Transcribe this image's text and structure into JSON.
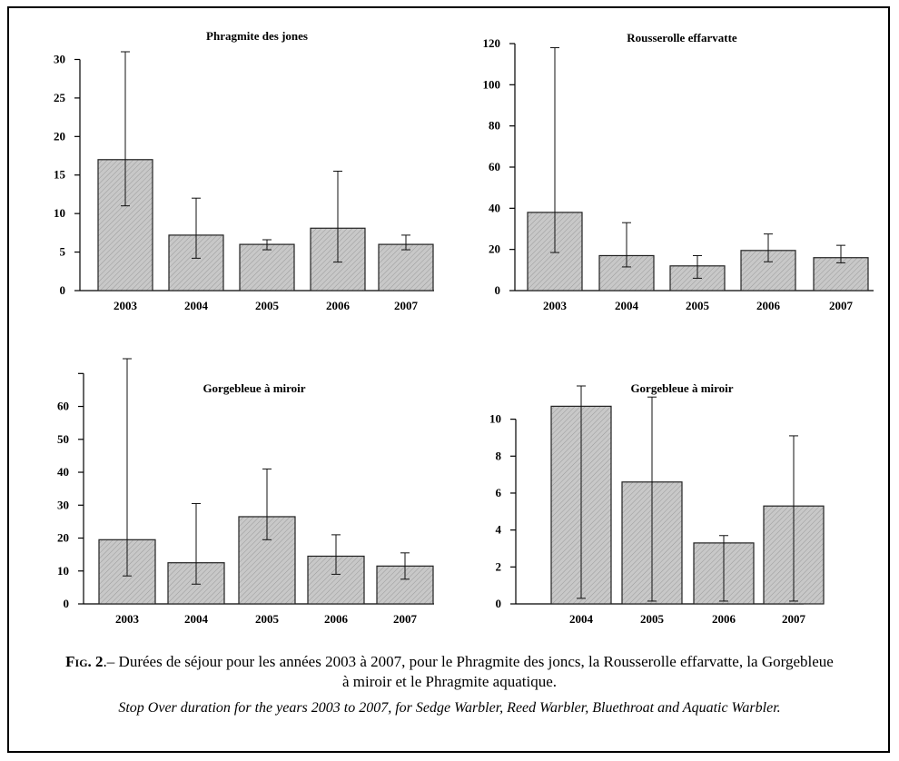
{
  "caption": {
    "fig_label": "Fig.",
    "fig_number": "2",
    "french_text": ".– Durées de séjour pour les années 2003 à 2007, pour le Phragmite des joncs, la Rousserolle effarvatte, la Gorgebleue à miroir et le Phragmite aquatique.",
    "english_text": "Stop Over duration for the years 2003 to 2007, for Sedge Warbler,  Reed Warbler, Bluethroat and Aquatic Warbler."
  },
  "colors": {
    "bar_fill": "#c8c8c8",
    "bar_stroke": "#222222",
    "axis": "#000000"
  },
  "chart_data": [
    {
      "type": "bar",
      "title": "Phragmite des jones",
      "categories": [
        "2003",
        "2004",
        "2005",
        "2006",
        "2007"
      ],
      "values": [
        17,
        7.2,
        6,
        8.1,
        6
      ],
      "error_low": [
        11,
        4.2,
        5.3,
        3.7,
        5.3
      ],
      "error_high": [
        31,
        12,
        6.6,
        15.5,
        7.2
      ],
      "yticks": [
        0,
        5,
        10,
        15,
        20,
        25,
        30
      ],
      "ytick_labels": [
        "0",
        "5",
        "10",
        "15",
        "20",
        "25",
        "30"
      ],
      "ylim": [
        0,
        31
      ],
      "xlabel": "",
      "ylabel": ""
    },
    {
      "type": "bar",
      "title": "Rousserolle effarvatte",
      "categories": [
        "2003",
        "2004",
        "2005",
        "2006",
        "2007"
      ],
      "values": [
        38,
        17,
        12,
        19.5,
        16
      ],
      "error_low": [
        18.5,
        11.5,
        6,
        14,
        13.5
      ],
      "error_high": [
        118,
        33,
        17,
        27.5,
        22
      ],
      "yticks": [
        0,
        20,
        40,
        60,
        80,
        100,
        120
      ],
      "ytick_labels": [
        "0",
        "20",
        "40",
        "60",
        "80",
        "100",
        "120"
      ],
      "ylim": [
        0,
        120
      ],
      "xlabel": "",
      "ylabel": ""
    },
    {
      "type": "bar",
      "title": "Gorgebleue à miroir",
      "categories": [
        "2003",
        "2004",
        "2005",
        "2006",
        "2007"
      ],
      "values": [
        19.5,
        12.5,
        26.5,
        14.5,
        11.5
      ],
      "error_low": [
        8.5,
        6,
        19.5,
        9,
        7.5
      ],
      "error_high": [
        74.5,
        30.5,
        41,
        21,
        15.5
      ],
      "yticks": [
        0,
        10,
        20,
        30,
        40,
        50,
        60,
        70
      ],
      "ytick_labels": [
        "0",
        "10",
        "20",
        "30",
        "40",
        "50",
        "60",
        ""
      ],
      "ylim": [
        0,
        74.5
      ],
      "xlabel": "",
      "ylabel": ""
    },
    {
      "type": "bar",
      "title": "Gorgebleue à miroir",
      "categories": [
        "2004",
        "2005",
        "2006",
        "2007"
      ],
      "values": [
        10.7,
        6.6,
        3.3,
        5.3
      ],
      "error_low": [
        0.3,
        0.15,
        0.15,
        0.15
      ],
      "error_high": [
        11.8,
        11.2,
        3.7,
        9.1
      ],
      "yticks": [
        0,
        2,
        4,
        6,
        8,
        10
      ],
      "ytick_labels": [
        "0",
        "2",
        "4",
        "6",
        "8",
        "10"
      ],
      "ylim": [
        0,
        11.8
      ],
      "xlabel": "",
      "ylabel": ""
    }
  ]
}
